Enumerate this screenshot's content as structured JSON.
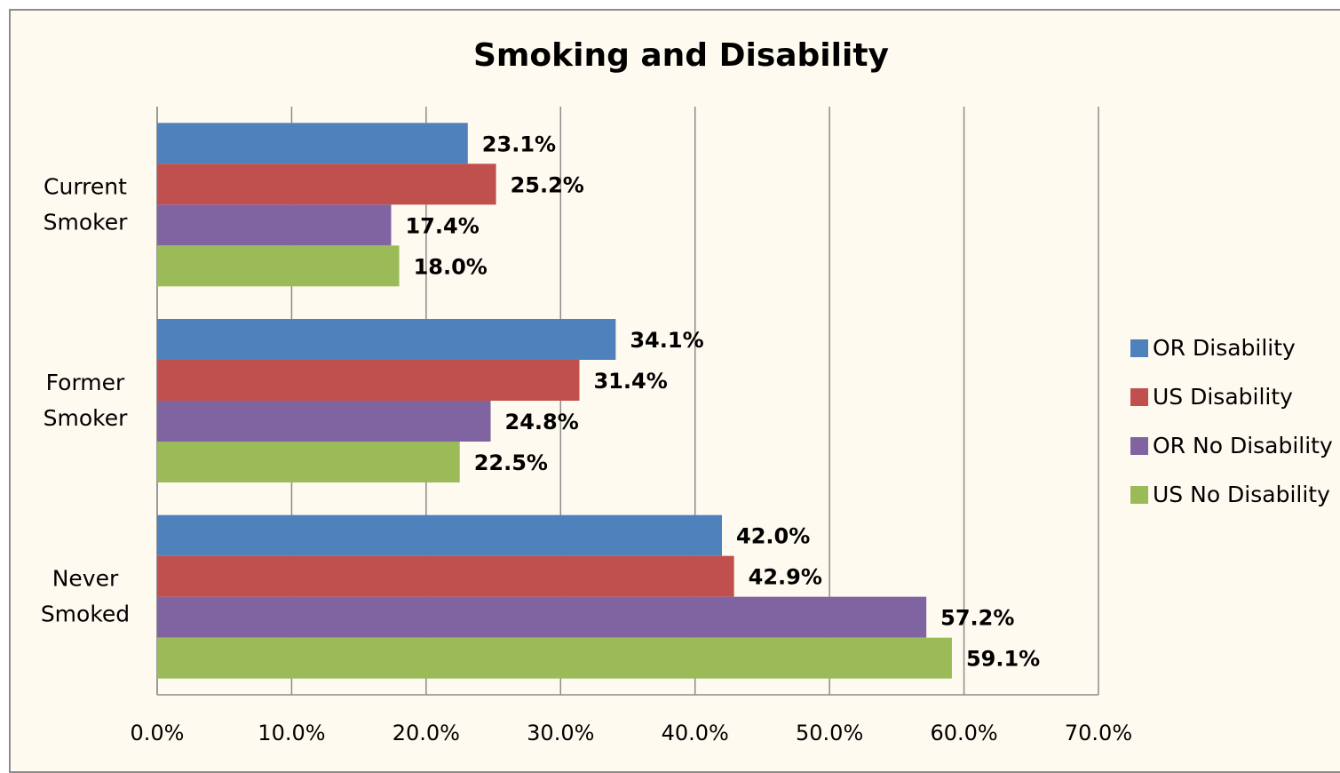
{
  "chart_data": {
    "type": "bar",
    "orientation": "horizontal",
    "title": "Smoking and Disability",
    "categories": [
      [
        "Current",
        "Smoker"
      ],
      [
        "Former",
        "Smoker"
      ],
      [
        "Never",
        "Smoked"
      ]
    ],
    "series": [
      {
        "name": "OR Disability",
        "color": "#4f81bd",
        "values": [
          23.1,
          34.1,
          42.0
        ]
      },
      {
        "name": "US Disability",
        "color": "#c0504d",
        "values": [
          25.2,
          31.4,
          42.9
        ]
      },
      {
        "name": "OR No Disability",
        "color": "#8064a2",
        "values": [
          17.4,
          24.8,
          57.2
        ]
      },
      {
        "name": "US No Disability",
        "color": "#9bbb59",
        "values": [
          18.0,
          22.5,
          59.1
        ]
      }
    ],
    "data_labels": [
      [
        "23.1%",
        "34.1%",
        "42.0%"
      ],
      [
        "25.2%",
        "31.4%",
        "42.9%"
      ],
      [
        "17.4%",
        "24.8%",
        "57.2%"
      ],
      [
        "18.0%",
        "22.5%",
        "59.1%"
      ]
    ],
    "xlim": [
      0,
      70
    ],
    "xticks": [
      0,
      10,
      20,
      30,
      40,
      50,
      60,
      70
    ],
    "xtick_labels": [
      "0.0%",
      "10.0%",
      "20.0%",
      "30.0%",
      "40.0%",
      "50.0%",
      "60.0%",
      "70.0%"
    ],
    "grid": "vertical",
    "legend": "right"
  }
}
